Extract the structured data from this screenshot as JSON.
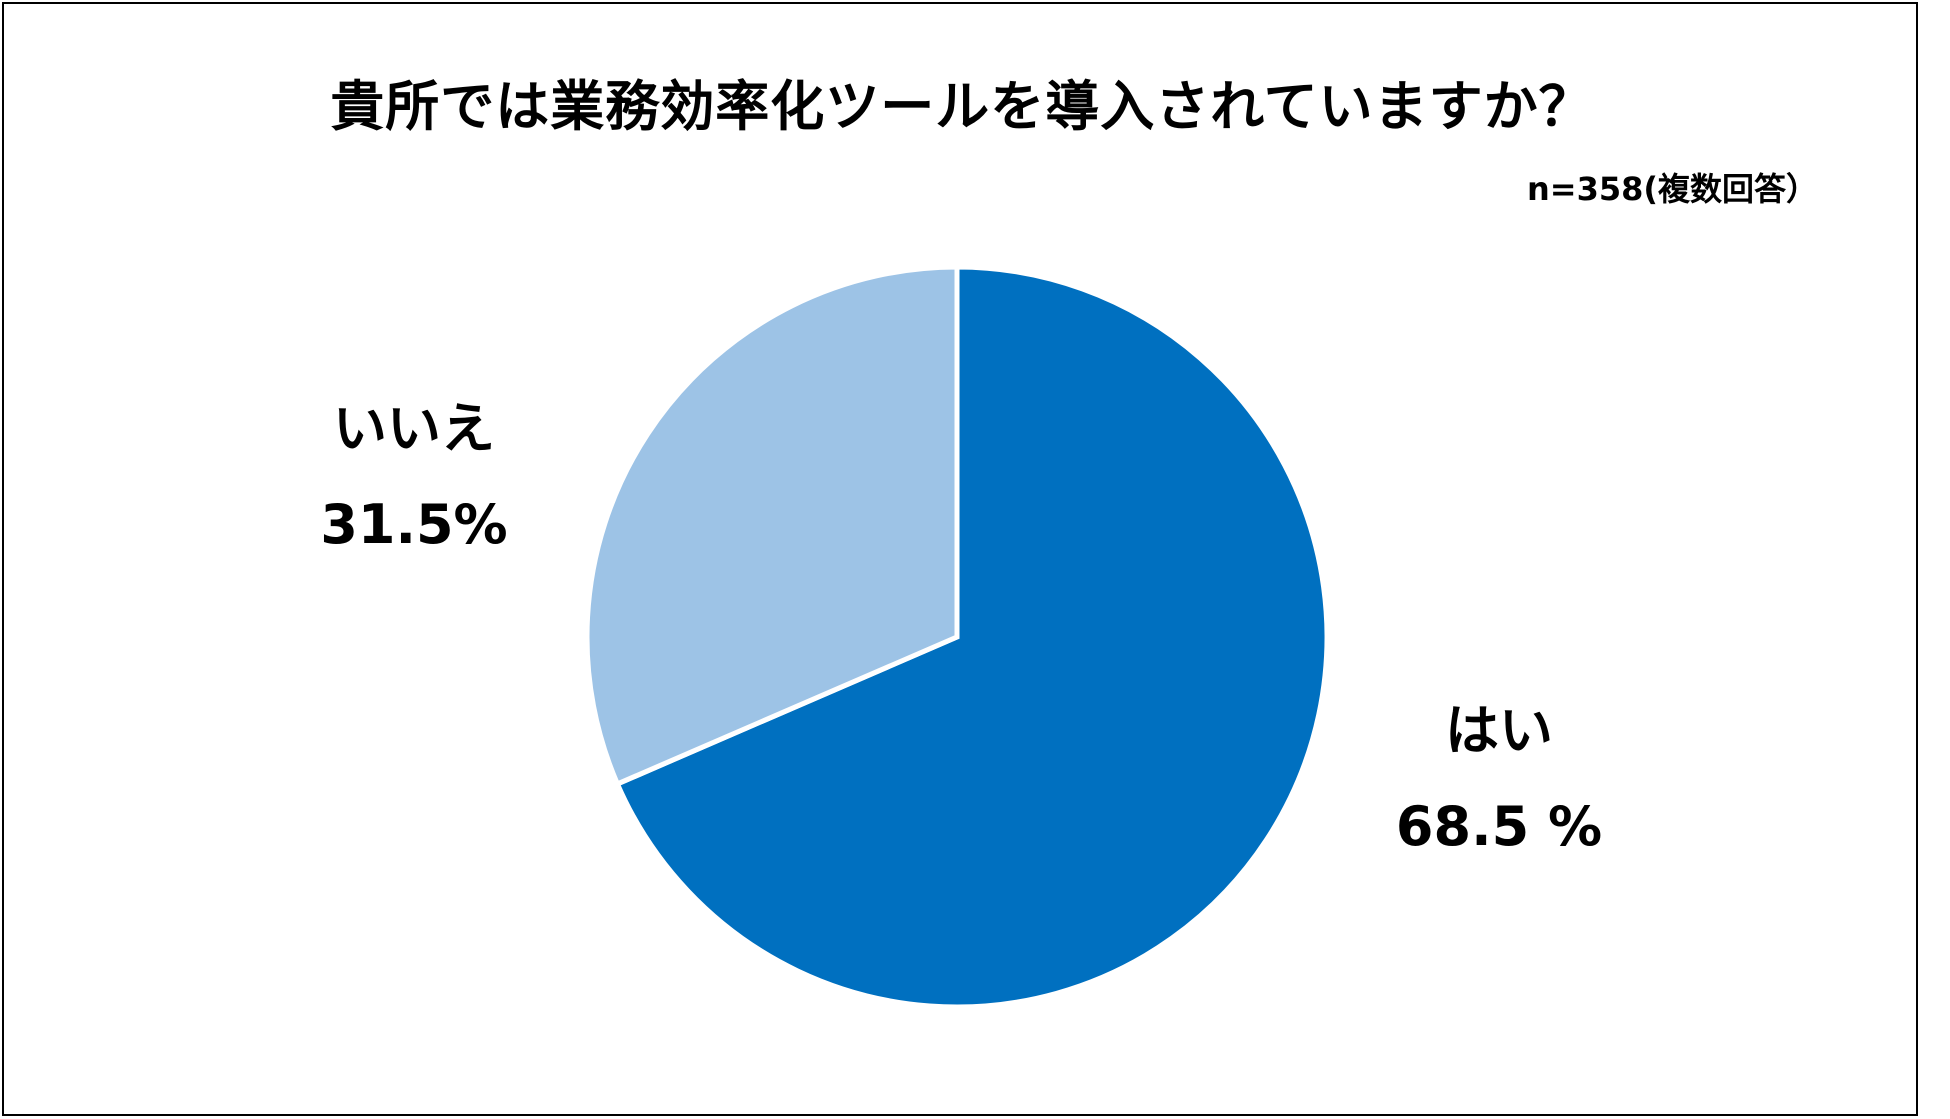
{
  "chart_data": {
    "type": "pie",
    "title": "貴所では業務効率化ツールを導入されていますか？",
    "note": "n=358(複数回答）",
    "slices": [
      {
        "name": "はい",
        "value": 68.5,
        "label": "68.5 %",
        "color": "#0070C0"
      },
      {
        "name": "いいえ",
        "value": 31.5,
        "label": "31.5%",
        "color": "#9DC3E6"
      }
    ],
    "start": "12 o'clock",
    "direction": "clockwise"
  }
}
